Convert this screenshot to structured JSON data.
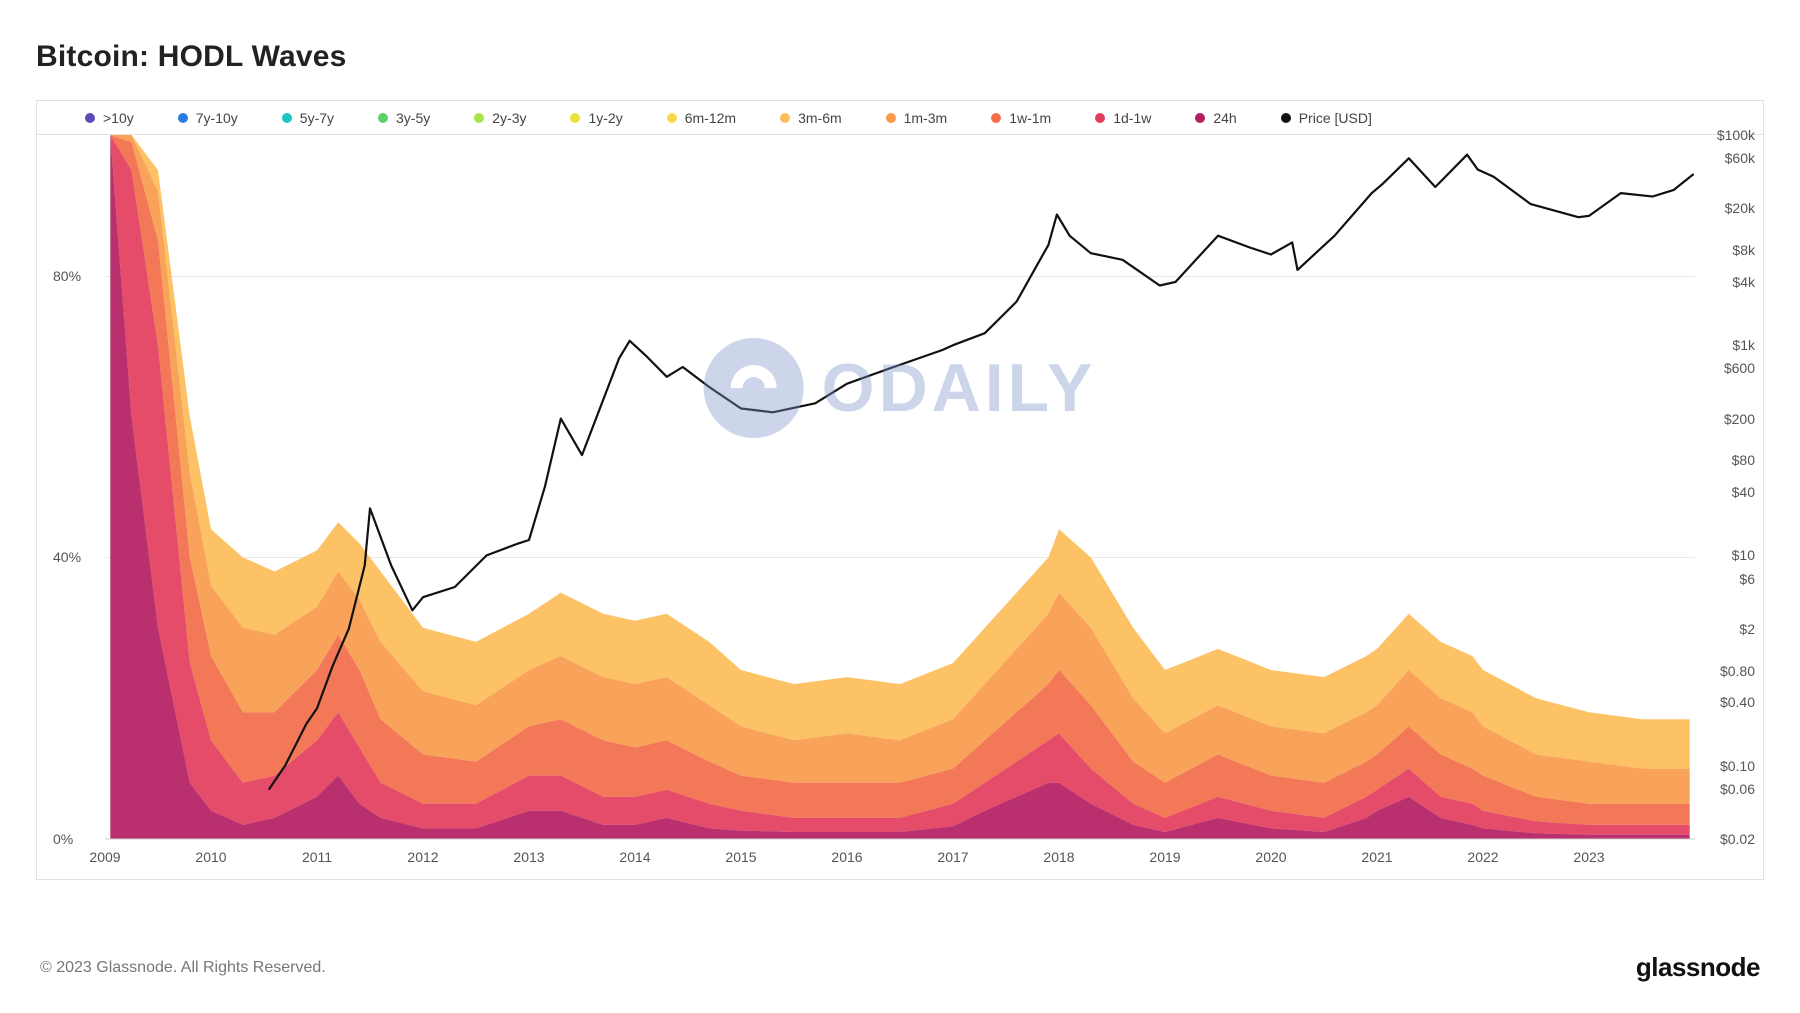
{
  "title": "Bitcoin: HODL Waves",
  "copyright": "© 2023 Glassnode. All Rights Reserved.",
  "brand": "glassnode",
  "watermark": "ODAILY",
  "chart": {
    "type": "stacked-area + log-line",
    "background_color": "#ffffff",
    "grid_color": "#e8e8e8",
    "border_color": "#e2e2e2",
    "title_fontsize": 30,
    "label_fontsize": 14,
    "x": {
      "ticks": [
        "2009",
        "2010",
        "2011",
        "2012",
        "2013",
        "2014",
        "2015",
        "2016",
        "2017",
        "2018",
        "2019",
        "2020",
        "2021",
        "2022",
        "2023"
      ],
      "domain_years": [
        2009,
        2024
      ]
    },
    "y_left": {
      "label": "%",
      "domain": [
        0,
        100
      ],
      "ticks": [
        0,
        40,
        80
      ]
    },
    "y_right": {
      "scale": "log",
      "domain": [
        0.02,
        100000
      ],
      "ticks": [
        0.02,
        0.06,
        0.1,
        0.4,
        0.8,
        2,
        6,
        10,
        40,
        80,
        200,
        600,
        1000,
        4000,
        8000,
        20000,
        60000,
        100000
      ],
      "tick_labels": [
        "$0.02",
        "$0.06",
        "$0.10",
        "$0.40",
        "$0.80",
        "$2",
        "$6",
        "$10",
        "$40",
        "$80",
        "$200",
        "$600",
        "$1k",
        "$4k",
        "$8k",
        "$20k",
        "$60k",
        "$100k"
      ]
    },
    "legend": [
      {
        "label": ">10y",
        "color": "#5b4db3"
      },
      {
        "label": "7y-10y",
        "color": "#2a7de1"
      },
      {
        "label": "5y-7y",
        "color": "#1ec3c3"
      },
      {
        "label": "3y-5y",
        "color": "#5ed06a"
      },
      {
        "label": "2y-3y",
        "color": "#a9e24a"
      },
      {
        "label": "1y-2y",
        "color": "#e8e23a"
      },
      {
        "label": "6m-12m",
        "color": "#f9d84a"
      },
      {
        "label": "3m-6m",
        "color": "#fdbd59"
      },
      {
        "label": "1m-3m",
        "color": "#f99a4b"
      },
      {
        "label": "1w-1m",
        "color": "#f26d4a"
      },
      {
        "label": "1d-1w",
        "color": "#e33d5d"
      },
      {
        "label": "24h",
        "color": "#b41e63"
      },
      {
        "label": "Price [USD]",
        "color": "#111111"
      }
    ],
    "visible_bands": [
      {
        "key": "3m-6m",
        "color": "#fdbd59"
      },
      {
        "key": "1m-3m",
        "color": "#f99a4b"
      },
      {
        "key": "1w-1m",
        "color": "#f26d4a"
      },
      {
        "key": "1d-1w",
        "color": "#e33d5d"
      },
      {
        "key": "24h",
        "color": "#b41e63"
      }
    ],
    "stacked_cumulative_top_pct": {
      "years": [
        2009.05,
        2009.25,
        2009.5,
        2009.8,
        2010.0,
        2010.3,
        2010.6,
        2011.0,
        2011.2,
        2011.4,
        2011.6,
        2012.0,
        2012.5,
        2013.0,
        2013.3,
        2013.7,
        2014.0,
        2014.3,
        2014.7,
        2015.0,
        2015.5,
        2016.0,
        2016.5,
        2017.0,
        2017.3,
        2017.6,
        2017.9,
        2018.0,
        2018.3,
        2018.7,
        2019.0,
        2019.5,
        2020.0,
        2020.5,
        2020.9,
        2021.0,
        2021.3,
        2021.6,
        2021.9,
        2022.0,
        2022.5,
        2023.0,
        2023.5,
        2023.95
      ],
      "top_3m6m": [
        100,
        100,
        95,
        60,
        44,
        40,
        38,
        41,
        45,
        42,
        38,
        30,
        28,
        32,
        35,
        32,
        31,
        32,
        28,
        24,
        22,
        23,
        22,
        25,
        30,
        35,
        40,
        44,
        40,
        30,
        24,
        27,
        24,
        23,
        26,
        27,
        32,
        28,
        26,
        24,
        20,
        18,
        17,
        17
      ],
      "top_1m3m": [
        100,
        100,
        92,
        52,
        36,
        30,
        29,
        33,
        38,
        34,
        28,
        21,
        19,
        24,
        26,
        23,
        22,
        23,
        19,
        16,
        14,
        15,
        14,
        17,
        22,
        27,
        32,
        35,
        30,
        20,
        15,
        19,
        16,
        15,
        18,
        19,
        24,
        20,
        18,
        16,
        12,
        11,
        10,
        10
      ],
      "top_1w1m": [
        100,
        99,
        85,
        40,
        26,
        18,
        18,
        24,
        29,
        24,
        17,
        12,
        11,
        16,
        17,
        14,
        13,
        14,
        11,
        9,
        8,
        8,
        8,
        10,
        14,
        18,
        22,
        24,
        19,
        11,
        8,
        12,
        9,
        8,
        11,
        12,
        16,
        12,
        10,
        9,
        6,
        5,
        5,
        5
      ],
      "top_1d1w": [
        100,
        95,
        70,
        25,
        14,
        8,
        9,
        14,
        18,
        13,
        8,
        5,
        5,
        9,
        9,
        6,
        6,
        7,
        5,
        4,
        3,
        3,
        3,
        5,
        8,
        11,
        14,
        15,
        10,
        5,
        3,
        6,
        4,
        3,
        6,
        7,
        10,
        6,
        5,
        4,
        2.5,
        2,
        2,
        2
      ],
      "top_24h": [
        100,
        60,
        30,
        8,
        4,
        2,
        3,
        6,
        9,
        5,
        3,
        1.5,
        1.5,
        4,
        4,
        2,
        2,
        3,
        1.5,
        1.2,
        1,
        1,
        1,
        1.8,
        4,
        6,
        8,
        8,
        5,
        2,
        1,
        3,
        1.5,
        1,
        3,
        4,
        6,
        3,
        2,
        1.5,
        0.8,
        0.6,
        0.6,
        0.6
      ]
    },
    "price_usd": {
      "years": [
        2010.55,
        2010.7,
        2010.9,
        2011.0,
        2011.15,
        2011.3,
        2011.45,
        2011.5,
        2011.7,
        2011.9,
        2012.0,
        2012.3,
        2012.6,
        2012.9,
        2013.0,
        2013.15,
        2013.3,
        2013.5,
        2013.85,
        2013.95,
        2014.1,
        2014.3,
        2014.45,
        2014.7,
        2015.0,
        2015.3,
        2015.7,
        2016.0,
        2016.4,
        2016.9,
        2017.0,
        2017.3,
        2017.6,
        2017.9,
        2017.98,
        2018.1,
        2018.3,
        2018.6,
        2018.95,
        2019.1,
        2019.5,
        2019.8,
        2020.0,
        2020.2,
        2020.25,
        2020.6,
        2020.95,
        2021.05,
        2021.3,
        2021.55,
        2021.85,
        2021.95,
        2022.1,
        2022.45,
        2022.9,
        2023.0,
        2023.3,
        2023.6,
        2023.8,
        2023.98
      ],
      "price": [
        0.06,
        0.1,
        0.25,
        0.35,
        0.9,
        2.0,
        8,
        28,
        8,
        3,
        4,
        5,
        10,
        13,
        14,
        45,
        200,
        90,
        750,
        1100,
        800,
        500,
        620,
        400,
        250,
        230,
        280,
        430,
        600,
        900,
        1000,
        1300,
        2600,
        9000,
        17500,
        11000,
        7500,
        6500,
        3700,
        4000,
        11000,
        8500,
        7300,
        9500,
        5200,
        11000,
        28000,
        34000,
        60000,
        32000,
        65000,
        47000,
        40000,
        22000,
        16500,
        17000,
        28000,
        26000,
        30000,
        42000
      ]
    },
    "price_line": {
      "color": "#111111",
      "width": 2.2
    }
  }
}
